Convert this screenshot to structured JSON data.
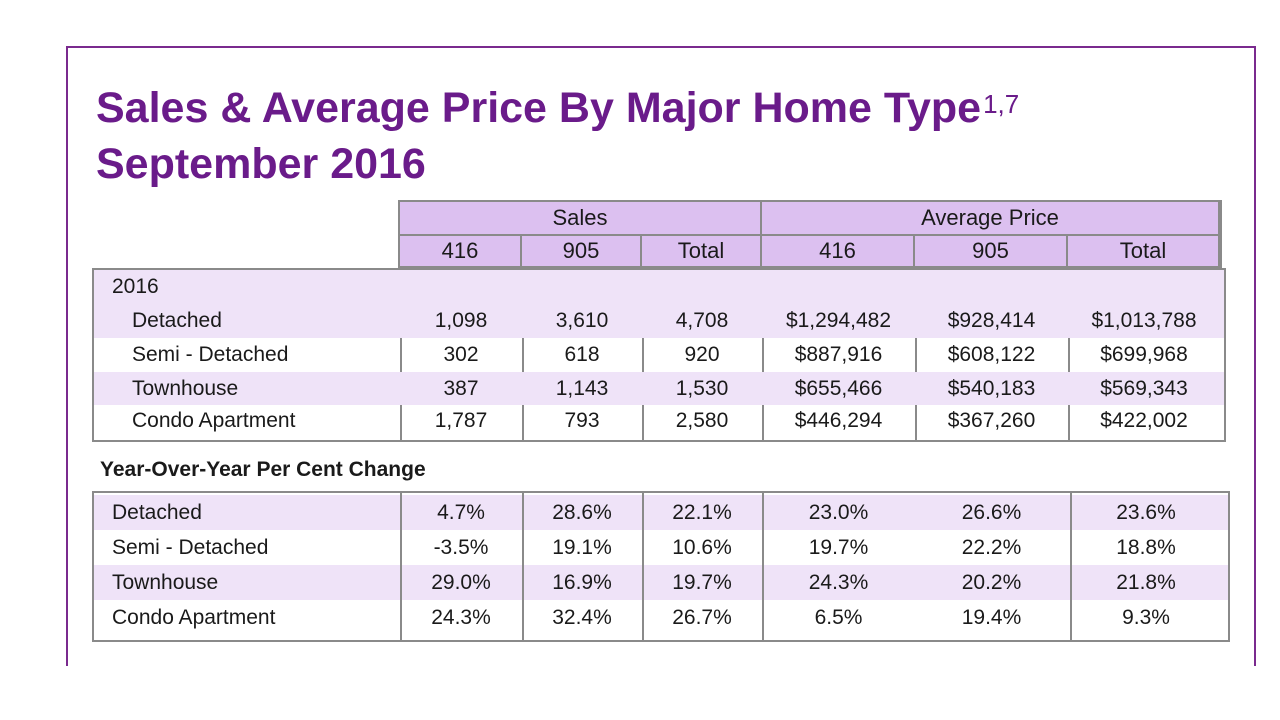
{
  "title": {
    "line1": "Sales & Average Price By Major Home Type",
    "superscript": "1,7",
    "line2": "September 2016"
  },
  "header": {
    "groups": [
      "Sales",
      "Average Price"
    ],
    "columns": [
      "416",
      "905",
      "Total",
      "416",
      "905",
      "Total"
    ]
  },
  "table_2016": {
    "year_label": "2016",
    "rows": [
      {
        "type": "Detached",
        "values": [
          "1,098",
          "3,610",
          "4,708",
          "$1,294,482",
          "$928,414",
          "$1,013,788"
        ]
      },
      {
        "type": "Semi - Detached",
        "values": [
          "302",
          "618",
          "920",
          "$887,916",
          "$608,122",
          "$699,968"
        ]
      },
      {
        "type": "Townhouse",
        "values": [
          "387",
          "1,143",
          "1,530",
          "$655,466",
          "$540,183",
          "$569,343"
        ]
      },
      {
        "type": "Condo Apartment",
        "values": [
          "1,787",
          "793",
          "2,580",
          "$446,294",
          "$367,260",
          "$422,002"
        ]
      }
    ]
  },
  "yoy": {
    "title": "Year-Over-Year Per Cent Change",
    "rows": [
      {
        "type": "Detached",
        "values": [
          "4.7%",
          "28.6%",
          "22.1%",
          "23.0%",
          "26.6%",
          "23.6%"
        ]
      },
      {
        "type": "Semi - Detached",
        "values": [
          "-3.5%",
          "19.1%",
          "10.6%",
          "19.7%",
          "22.2%",
          "18.8%"
        ]
      },
      {
        "type": "Townhouse",
        "values": [
          "29.0%",
          "16.9%",
          "19.7%",
          "24.3%",
          "20.2%",
          "21.8%"
        ]
      },
      {
        "type": "Condo Apartment",
        "values": [
          "24.3%",
          "32.4%",
          "26.7%",
          "6.5%",
          "19.4%",
          "9.3%"
        ]
      }
    ]
  },
  "colors": {
    "title": "#6a1b8a",
    "header_fill": "#dcc0f0",
    "row_shade": "#efe3f8",
    "frame": "#7a2a8e"
  }
}
